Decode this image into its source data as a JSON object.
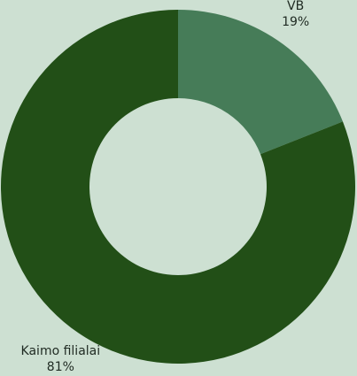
{
  "chart_data": {
    "type": "donut",
    "categories": [
      "VB",
      "Kaimo filialai"
    ],
    "values": [
      19,
      81
    ],
    "value_labels": [
      "19%",
      "81%"
    ],
    "colors": [
      "#467c58",
      "#224f17"
    ]
  }
}
